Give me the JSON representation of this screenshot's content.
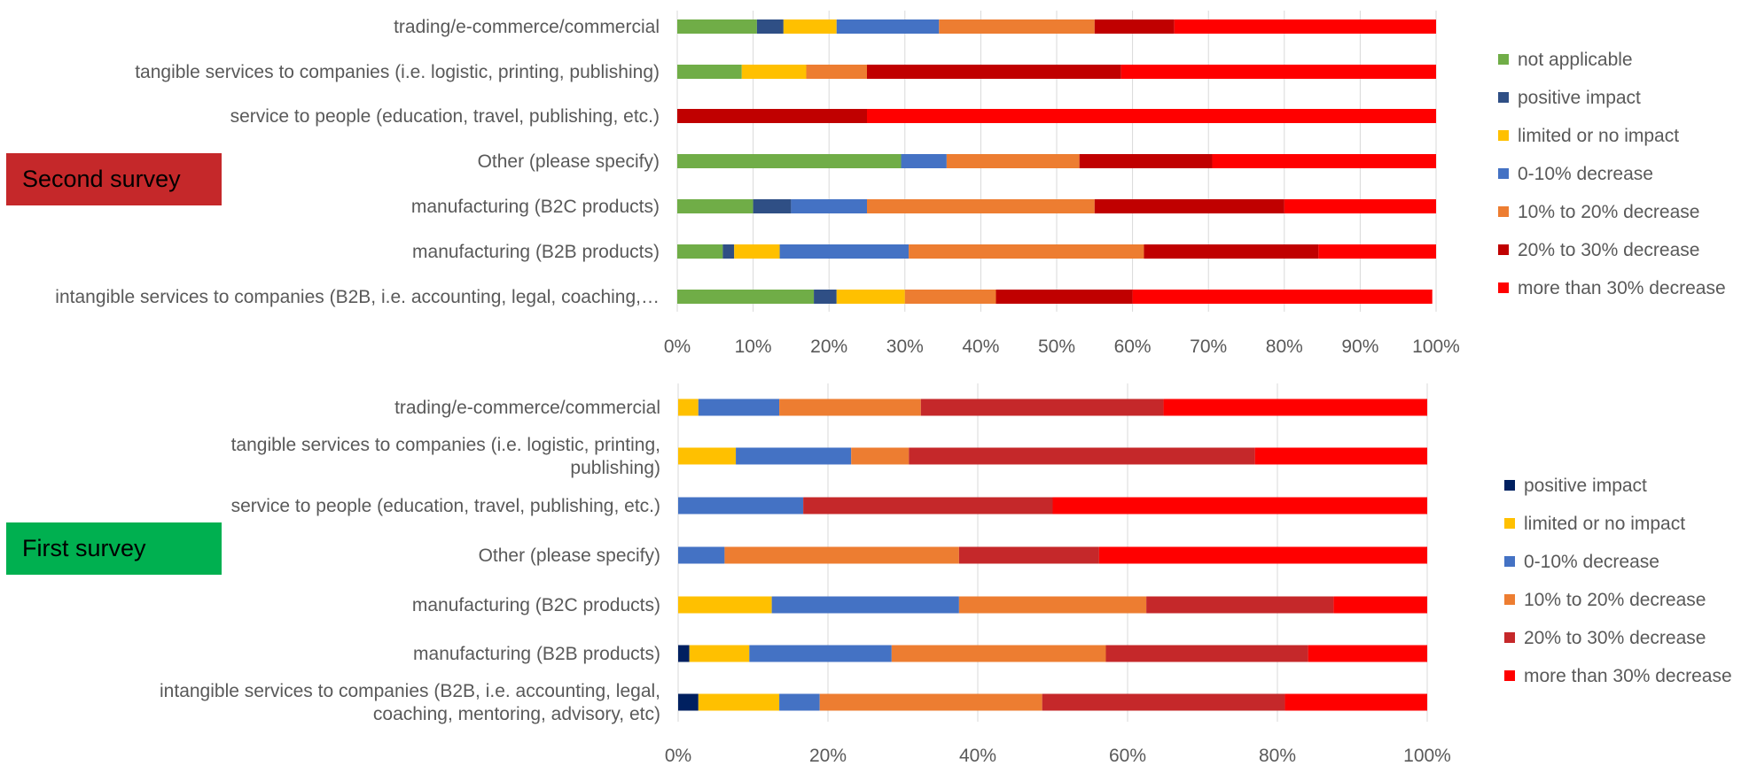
{
  "chart_data": [
    {
      "type": "bar",
      "orientation": "horizontal",
      "stacked": "percent",
      "categories": [
        "trading/e-commerce/commercial",
        "tangible services to companies (i.e. logistic, printing, publishing)",
        "service to people (education, travel, publishing, etc.)",
        "Other (please specify)",
        "manufacturing (B2C products)",
        "manufacturing (B2B products)",
        "intangible services to companies (B2B, i.e. accounting, legal, coaching,…"
      ],
      "series": [
        {
          "name": "not applicable",
          "color": "#70ad47",
          "values": [
            10.5,
            8.5,
            0,
            29.5,
            10,
            6,
            18
          ]
        },
        {
          "name": "positive impact",
          "color": "#2f4f85",
          "values": [
            3.5,
            0,
            0,
            0,
            5,
            1.5,
            3
          ]
        },
        {
          "name": "limited or no impact",
          "color": "#ffc000",
          "values": [
            7,
            8.5,
            0,
            0,
            0,
            6,
            9
          ]
        },
        {
          "name": "0-10% decrease",
          "color": "#4472c4",
          "values": [
            13.5,
            0,
            0,
            6,
            10,
            17,
            0
          ]
        },
        {
          "name": "10% to 20% decrease",
          "color": "#ed7d31",
          "values": [
            20.5,
            8,
            0,
            17.5,
            30,
            31,
            12
          ]
        },
        {
          "name": "20% to 30% decrease",
          "color": "#c00000",
          "values": [
            10.5,
            33.5,
            25,
            17.5,
            25,
            23,
            18
          ]
        },
        {
          "name": "more than 30% decrease",
          "color": "#ff0000",
          "values": [
            34.5,
            41.5,
            75,
            29.5,
            20,
            15.5,
            39.5
          ]
        }
      ],
      "x_ticks": [
        "0%",
        "10%",
        "20%",
        "30%",
        "40%",
        "50%",
        "60%",
        "70%",
        "80%",
        "90%",
        "100%"
      ],
      "xlim": [
        0,
        100
      ],
      "grid": true,
      "legend_position": "right",
      "label": "Second survey",
      "label_color": "#c5282a"
    },
    {
      "type": "bar",
      "orientation": "horizontal",
      "stacked": "percent",
      "categories": [
        "trading/e-commerce/commercial",
        [
          "tangible services to companies (i.e. logistic, printing,",
          "publishing)"
        ],
        "service to people (education, travel, publishing, etc.)",
        "Other (please specify)",
        "manufacturing (B2C products)",
        "manufacturing (B2B products)",
        [
          "intangible services to companies (B2B, i.e. accounting, legal,",
          "coaching, mentoring, advisory, etc)"
        ]
      ],
      "series": [
        {
          "name": "positive impact",
          "color": "#002060",
          "values": [
            0,
            0,
            0,
            0,
            0,
            1.5,
            2.7
          ]
        },
        {
          "name": "limited or no impact",
          "color": "#ffc000",
          "values": [
            2.7,
            7.7,
            0,
            0,
            12.5,
            8,
            10.8
          ]
        },
        {
          "name": "0-10% decrease",
          "color": "#4472c4",
          "values": [
            10.8,
            15.4,
            16.7,
            6.2,
            25,
            19,
            5.4
          ]
        },
        {
          "name": "10% to 20% decrease",
          "color": "#ed7d31",
          "values": [
            18.9,
            7.7,
            0,
            31.3,
            25,
            28.6,
            29.7
          ]
        },
        {
          "name": "20% to 30% decrease",
          "color": "#c5282a",
          "values": [
            32.4,
            46.2,
            33.3,
            18.7,
            25,
            27,
            32.4
          ]
        },
        {
          "name": "more than 30% decrease",
          "color": "#ff0000",
          "values": [
            35.2,
            23,
            50,
            43.8,
            12.5,
            15.9,
            19
          ]
        }
      ],
      "x_ticks": [
        "0%",
        "20%",
        "40%",
        "60%",
        "80%",
        "100%"
      ],
      "xlim": [
        0,
        100
      ],
      "grid": true,
      "legend_position": "right",
      "label": "First survey",
      "label_color": "#00b050"
    }
  ]
}
